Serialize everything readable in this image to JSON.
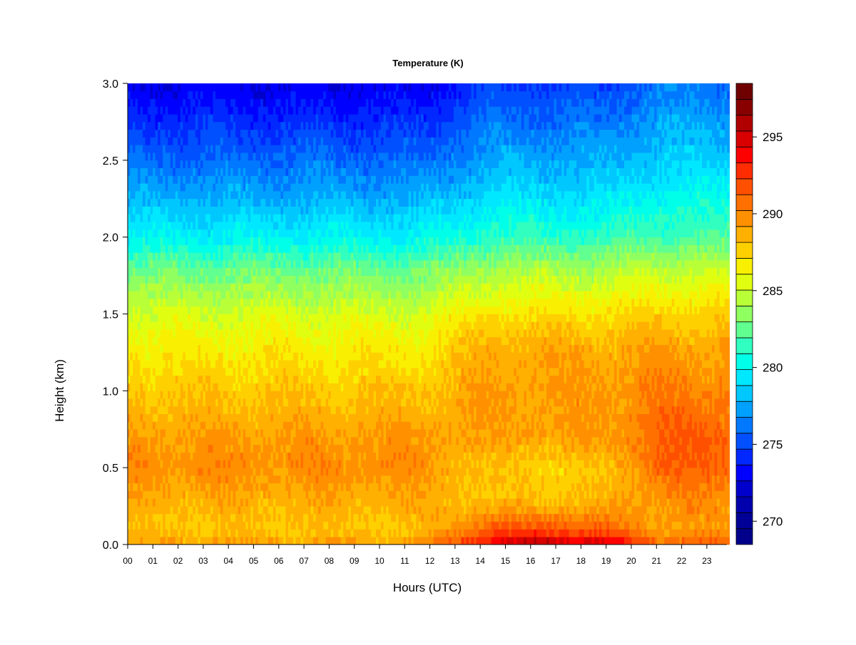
{
  "chart_data": {
    "type": "heatmap",
    "title": "Temperature (K)",
    "xlabel": "Hours (UTC)",
    "ylabel": "Height (km)",
    "xlim": [
      0,
      23.9
    ],
    "ylim": [
      0.0,
      3.0
    ],
    "x_tick_labels": [
      "00",
      "01",
      "02",
      "03",
      "04",
      "05",
      "06",
      "07",
      "08",
      "09",
      "10",
      "11",
      "12",
      "13",
      "14",
      "15",
      "16",
      "17",
      "18",
      "19",
      "20",
      "21",
      "22",
      "23"
    ],
    "y_tick_labels": [
      "0.0",
      "0.5",
      "1.0",
      "1.5",
      "2.0",
      "2.5",
      "3.0"
    ],
    "y_ticks": [
      0.0,
      0.5,
      1.0,
      1.5,
      2.0,
      2.5,
      3.0
    ],
    "colorbar": {
      "min": 269,
      "max": 298,
      "step": 1,
      "tick_values": [
        270,
        275,
        280,
        285,
        290,
        295
      ],
      "tick_labels": [
        "270",
        "275",
        "280",
        "285",
        "290",
        "295"
      ],
      "colors": [
        "#00008b",
        "#000096",
        "#0000ad",
        "#0000cd",
        "#0000ff",
        "#0028ff",
        "#0050ff",
        "#0078ff",
        "#00a0ff",
        "#00c8ff",
        "#00e8ff",
        "#00ffe8",
        "#30ffc0",
        "#60ff90",
        "#90ff60",
        "#b8ff38",
        "#e0ff10",
        "#f8f000",
        "#ffd000",
        "#ffb000",
        "#ff9000",
        "#ff7000",
        "#ff5000",
        "#ff2c00",
        "#ff0000",
        "#d80000",
        "#b00000",
        "#880000",
        "#700000"
      ]
    },
    "height_profiles_K": {
      "heights_km": [
        0.0,
        0.1,
        0.3,
        0.5,
        0.7,
        1.0,
        1.3,
        1.5,
        1.8,
        2.0,
        2.3,
        2.6,
        3.0
      ],
      "night_00_06": [
        289.0,
        287.8,
        288.6,
        289.6,
        289.2,
        287.8,
        286.4,
        285.3,
        282.6,
        280.0,
        277.5,
        275.5,
        273.0
      ],
      "afternoon_15_18": [
        294.5,
        291.0,
        288.0,
        287.6,
        289.0,
        289.2,
        288.6,
        287.0,
        284.0,
        281.3,
        279.0,
        277.2,
        275.0
      ],
      "evening_22": [
        291.0,
        289.0,
        289.5,
        291.0,
        291.0,
        290.0,
        288.8,
        287.5,
        284.6,
        282.0,
        280.0,
        278.2,
        276.5
      ]
    }
  }
}
